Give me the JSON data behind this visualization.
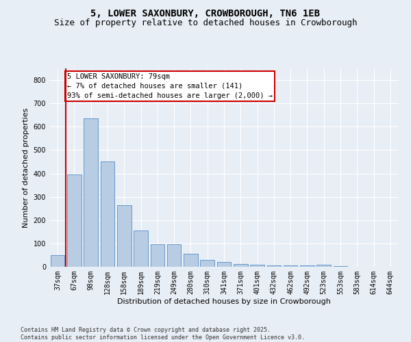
{
  "title": "5, LOWER SAXONBURY, CROWBOROUGH, TN6 1EB",
  "subtitle": "Size of property relative to detached houses in Crowborough",
  "xlabel": "Distribution of detached houses by size in Crowborough",
  "ylabel": "Number of detached properties",
  "categories": [
    "37sqm",
    "67sqm",
    "98sqm",
    "128sqm",
    "158sqm",
    "189sqm",
    "219sqm",
    "249sqm",
    "280sqm",
    "310sqm",
    "341sqm",
    "371sqm",
    "401sqm",
    "432sqm",
    "462sqm",
    "492sqm",
    "523sqm",
    "553sqm",
    "583sqm",
    "614sqm",
    "644sqm"
  ],
  "values": [
    50,
    395,
    635,
    450,
    265,
    155,
    97,
    97,
    55,
    30,
    20,
    13,
    8,
    5,
    5,
    5,
    10,
    2,
    1,
    1,
    1
  ],
  "bar_color": "#b8cce4",
  "bar_edge_color": "#6699cc",
  "highlight_line_color": "#cc0000",
  "annotation_text": "5 LOWER SAXONBURY: 79sqm\n← 7% of detached houses are smaller (141)\n93% of semi-detached houses are larger (2,000) →",
  "annotation_box_color": "#cc0000",
  "ylim": [
    0,
    850
  ],
  "yticks": [
    0,
    100,
    200,
    300,
    400,
    500,
    600,
    700,
    800
  ],
  "background_color": "#e8eef5",
  "plot_bg_color": "#e8eef5",
  "footer_text": "Contains HM Land Registry data © Crown copyright and database right 2025.\nContains public sector information licensed under the Open Government Licence v3.0.",
  "title_fontsize": 10,
  "subtitle_fontsize": 9,
  "axis_label_fontsize": 8,
  "tick_fontsize": 7,
  "annotation_fontsize": 7.5
}
